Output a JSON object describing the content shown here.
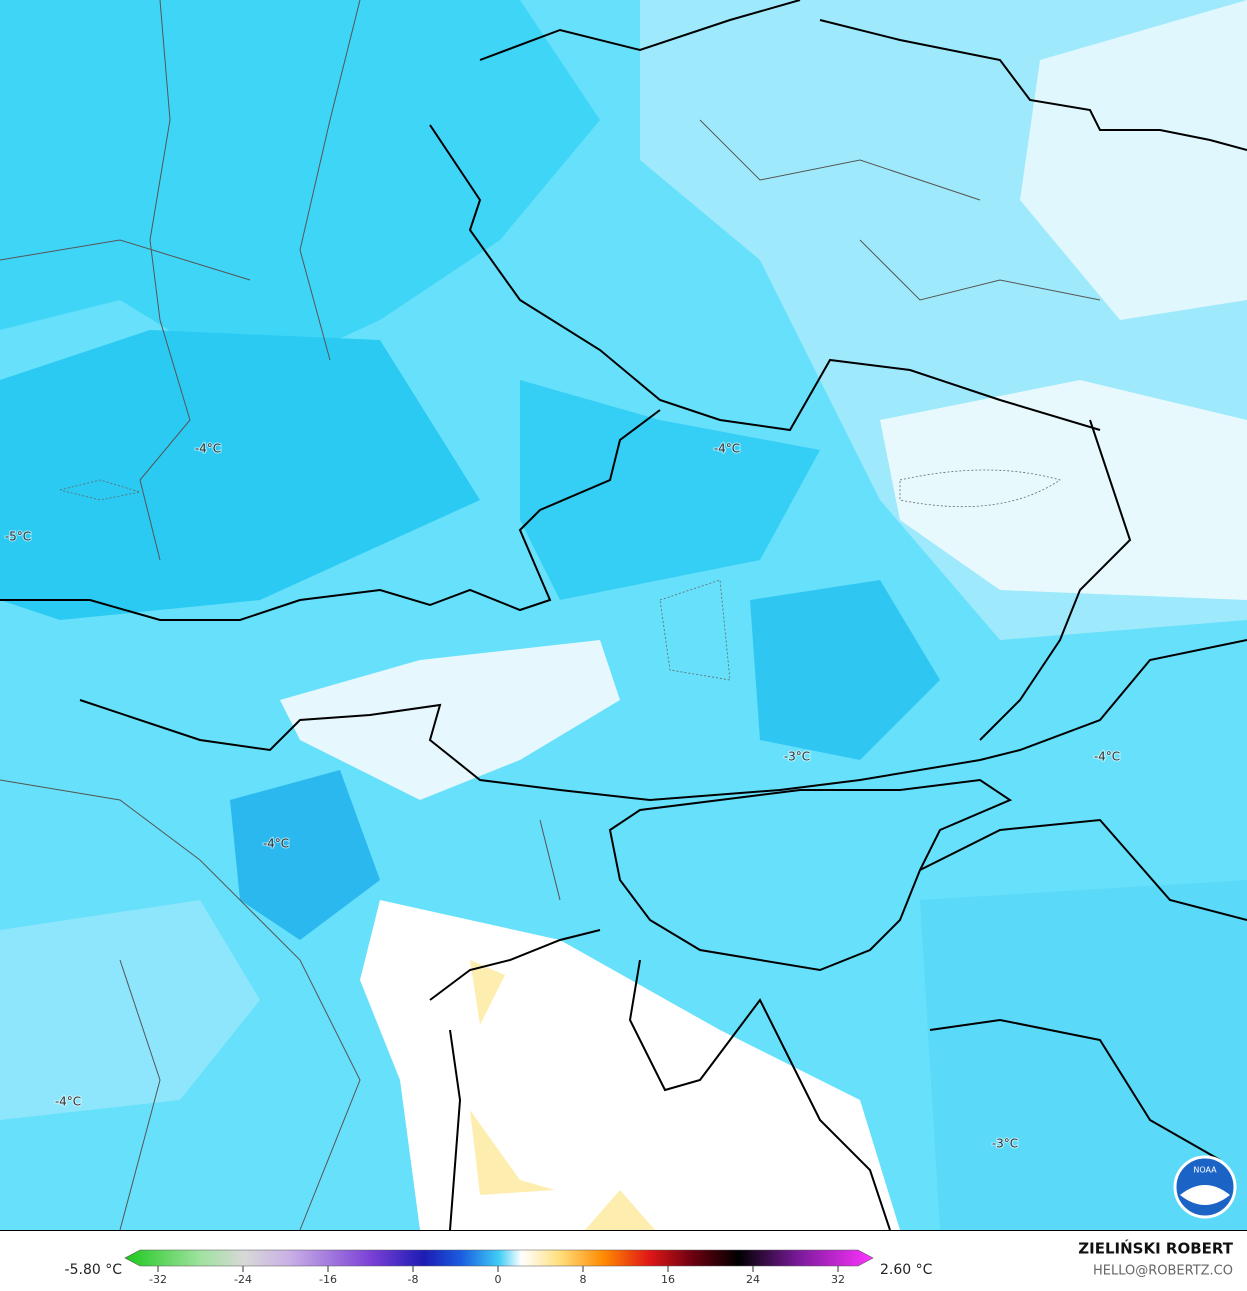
{
  "map": {
    "contour_labels": [
      "-4°C",
      "-4°C",
      "-5°C",
      "-3°C",
      "-4°C",
      "-4°C",
      "-4°C",
      "-3°C"
    ],
    "logo": "NOAA"
  },
  "colorbar": {
    "min_label": "-5.80 °C",
    "max_label": "2.60 °C",
    "ticks": [
      -32,
      -24,
      -16,
      -8,
      0,
      8,
      16,
      24,
      32
    ]
  },
  "credit": {
    "author": "ZIELIŃSKI ROBERT",
    "contact": "HELLO@ROBERTZ.CO"
  }
}
